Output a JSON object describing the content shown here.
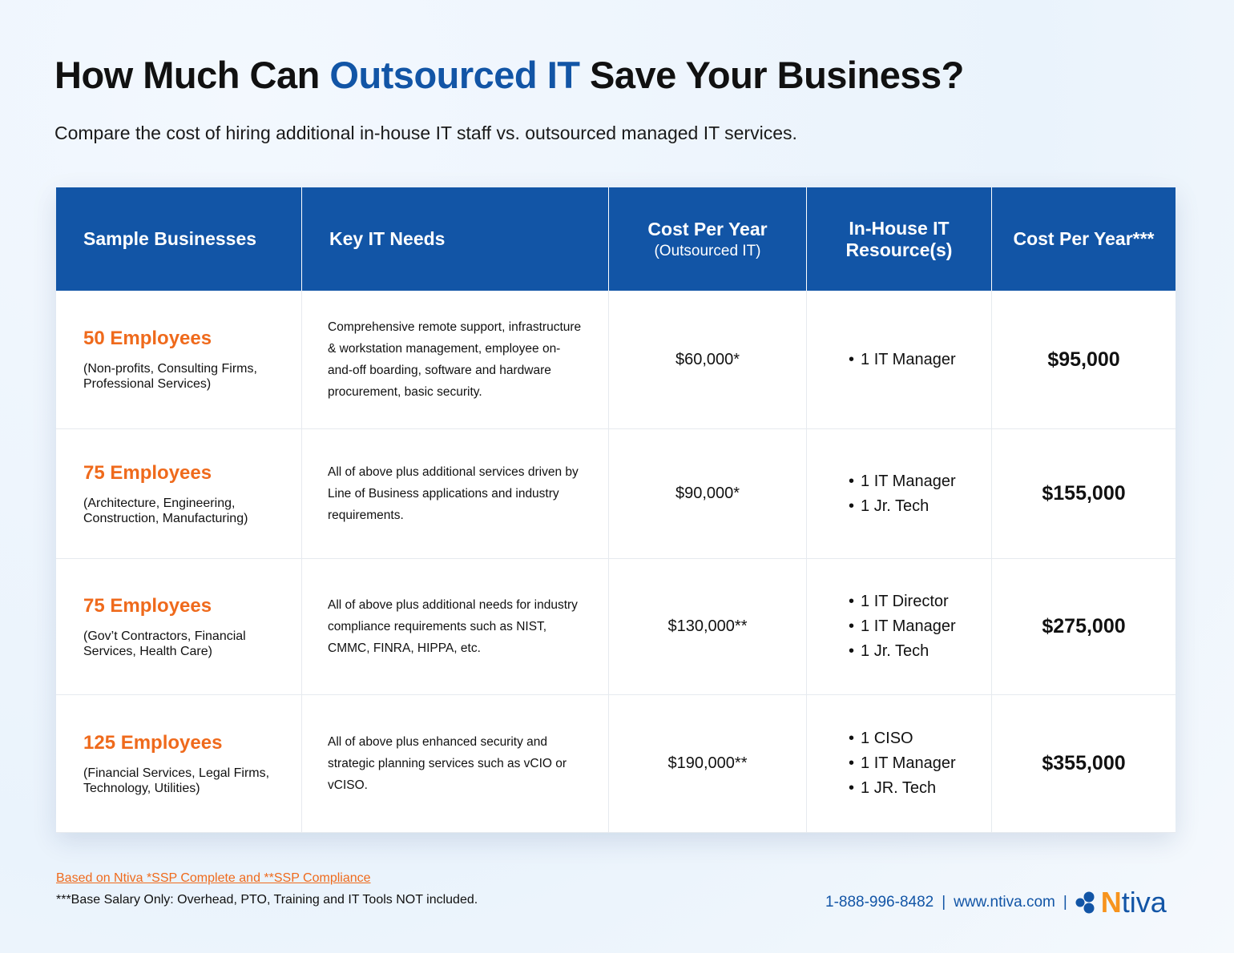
{
  "title": {
    "pre": "How Much Can ",
    "highlight": "Outsourced IT",
    "post": " Save Your Business?"
  },
  "subtitle": "Compare the cost of hiring additional in-house IT staff vs. outsourced managed IT services.",
  "headers": {
    "col1": "Sample Businesses",
    "col2": "Key IT Needs",
    "col3": "Cost Per Year",
    "col3_sub": "(Outsourced IT)",
    "col4": "In-House IT Resource(s)",
    "col5": "Cost Per Year***"
  },
  "rows": [
    {
      "size": "50 Employees",
      "types": "(Non-profits, Consulting Firms, Professional Services)",
      "needs": "Comprehensive remote support, infrastructure & workstation management, employee on-and-off boarding, software and hardware procurement, basic security.",
      "outsourced": "$60,000*",
      "resources": [
        "1 IT Manager"
      ],
      "inhouse": "$95,000"
    },
    {
      "size": "75 Employees",
      "types": "(Architecture, Engineering, Construction, Manufacturing)",
      "needs": "All of above plus additional services driven by Line of Business applications and industry requirements.",
      "outsourced": "$90,000*",
      "resources": [
        "1 IT Manager",
        "1 Jr. Tech"
      ],
      "inhouse": "$155,000"
    },
    {
      "size": "75 Employees",
      "types": "(Gov’t Contractors, Financial Services, Health Care)",
      "needs": "All of above plus additional needs for industry compliance requirements such as NIST, CMMC, FINRA, HIPPA, etc.",
      "outsourced": "$130,000**",
      "resources": [
        "1 IT Director",
        "1 IT Manager",
        "1 Jr. Tech"
      ],
      "inhouse": "$275,000"
    },
    {
      "size": "125 Employees",
      "types": "(Financial Services, Legal Firms, Technology, Utilities)",
      "needs": "All of above plus enhanced security and strategic planning services such as vCIO or vCISO.",
      "outsourced": "$190,000**",
      "resources": [
        "1 CISO",
        "1 IT Manager",
        "1 JR. Tech"
      ],
      "inhouse": "$355,000"
    }
  ],
  "footer": {
    "note1": "Based on Ntiva *SSP Complete and **SSP Compliance",
    "note2": "***Base Salary Only: Overhead, PTO, Training and IT Tools NOT included.",
    "phone": "1-888-996-8482",
    "website": "www.ntiva.com",
    "logo": "Ntiva"
  },
  "colors": {
    "brand_blue": "#1255a6",
    "accent_orange": "#ef6a1c"
  }
}
